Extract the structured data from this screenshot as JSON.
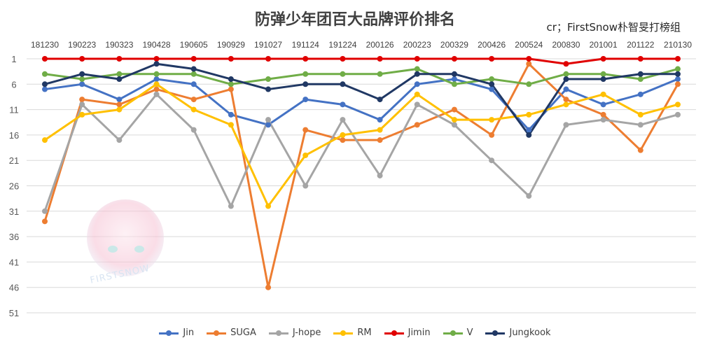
{
  "chart_data": {
    "type": "line",
    "title": "防弹少年团百大品牌评价排名",
    "credit": "cr；FirstSnow朴智旻打榜组",
    "categories": [
      "181230",
      "190223",
      "190323",
      "190428",
      "190605",
      "190929",
      "191027",
      "191124",
      "191224",
      "200126",
      "200223",
      "200329",
      "200426",
      "200524",
      "200830",
      "201001",
      "201122",
      "210130"
    ],
    "y_ticks": [
      1,
      6,
      11,
      16,
      21,
      26,
      31,
      36,
      41,
      46,
      51
    ],
    "ylim": [
      1,
      51
    ],
    "y_inverted": true,
    "x_axis_position": "top",
    "grid": true,
    "legend_position": "bottom",
    "series": [
      {
        "name": "Jin",
        "color": "#4472C4",
        "values": [
          7,
          6,
          9,
          5,
          6,
          12,
          14,
          9,
          10,
          13,
          6,
          5,
          7,
          15,
          7,
          10,
          8,
          5
        ]
      },
      {
        "name": "SUGA",
        "color": "#ED7D31",
        "values": [
          33,
          9,
          10,
          7,
          9,
          7,
          46,
          15,
          17,
          17,
          14,
          11,
          16,
          2,
          9,
          12,
          19,
          6
        ]
      },
      {
        "name": "J-hope",
        "color": "#A5A5A5",
        "values": [
          31,
          10,
          17,
          8,
          15,
          30,
          13,
          26,
          13,
          24,
          10,
          14,
          21,
          28,
          14,
          13,
          14,
          12
        ]
      },
      {
        "name": "RM",
        "color": "#FFC000",
        "values": [
          17,
          12,
          11,
          6,
          11,
          14,
          30,
          20,
          16,
          15,
          8,
          13,
          13,
          12,
          10,
          8,
          12,
          10
        ]
      },
      {
        "name": "Jimin",
        "color": "#E00000",
        "values": [
          1,
          1,
          1,
          1,
          1,
          1,
          1,
          1,
          1,
          1,
          1,
          1,
          1,
          1,
          2,
          1,
          1,
          1
        ]
      },
      {
        "name": "V",
        "color": "#70AD47",
        "values": [
          4,
          5,
          4,
          4,
          4,
          6,
          5,
          4,
          4,
          4,
          3,
          6,
          5,
          6,
          4,
          4,
          5,
          3
        ]
      },
      {
        "name": "Jungkook",
        "color": "#203864",
        "values": [
          6,
          4,
          5,
          2,
          3,
          5,
          7,
          6,
          6,
          9,
          4,
          4,
          6,
          16,
          5,
          5,
          4,
          4
        ]
      }
    ]
  },
  "watermark": {
    "text": "FIRSTSNOW"
  }
}
